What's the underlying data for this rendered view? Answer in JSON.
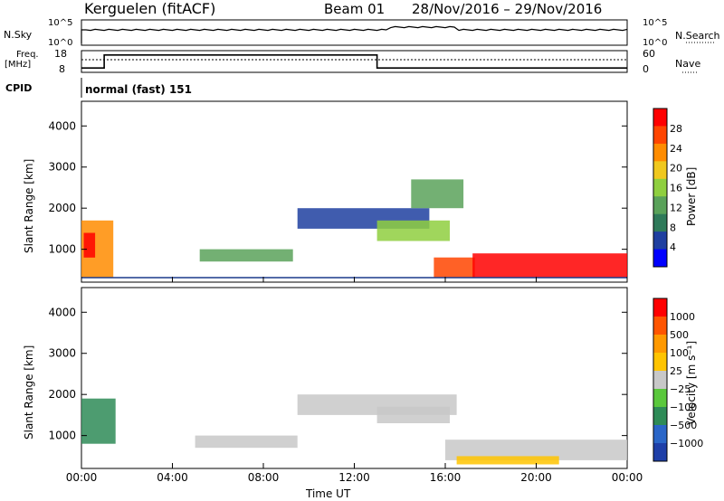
{
  "header": {
    "station": "Kerguelen (fitACF)",
    "beam": "Beam 01",
    "dates": "28/Nov/2016 – 29/Nov/2016"
  },
  "status_panels": {
    "nsky_label": "N.Sky",
    "nsky_ticks": [
      "10^5",
      "10^0"
    ],
    "nsearch_ticks": [
      "10^5",
      "10^0"
    ],
    "nsearch_label": "N.Search",
    "freq_label_1": "Freq.",
    "freq_label_2": "[MHz]",
    "freq_ticks": [
      "18",
      "8"
    ],
    "nave_ticks": [
      "60",
      "0"
    ],
    "nave_label": "Nave",
    "cpid_label": "CPID",
    "cpid_value": "normal (fast) 151"
  },
  "colors": {
    "power_scale": [
      "#0000ff",
      "#1f3fa0",
      "#2f7a5a",
      "#5aa25a",
      "#8fcf3f",
      "#f0c81e",
      "#ff8c00",
      "#ff4500",
      "#ff0000"
    ],
    "velocity_scale": [
      "#1e3fa8",
      "#2a66c8",
      "#2e8b57",
      "#5ac83c",
      "#c8c8c8",
      "#ffc400",
      "#ff9900",
      "#ff5500",
      "#ff0000"
    ]
  },
  "chart_data": [
    {
      "type": "line",
      "name": "status",
      "x_range_hours": [
        0,
        24
      ],
      "frequency_mhz": [
        {
          "from": 0,
          "to": 1,
          "value": 10
        },
        {
          "from": 1,
          "to": 13,
          "value": 16
        },
        {
          "from": 13,
          "to": 24,
          "value": 10
        }
      ],
      "nave_dotted": 44
    },
    {
      "type": "heatmap",
      "name": "power",
      "ylabel": "Slant Range [km]",
      "xlabel": "",
      "x_ticks": [
        "00:00",
        "04:00",
        "08:00",
        "12:00",
        "16:00",
        "20:00",
        "00:00"
      ],
      "y_ticks": [
        "1000",
        "2000",
        "3000",
        "4000"
      ],
      "ylim": [
        200,
        4600
      ],
      "colorbar_label": "Power [dB]",
      "colorbar_ticks": [
        "28",
        "24",
        "20",
        "16",
        "12",
        "8",
        "4"
      ],
      "regions": [
        {
          "t0": 0.0,
          "t1": 1.4,
          "r0": 300,
          "r1": 1700,
          "level": 6
        },
        {
          "t0": 0.1,
          "t1": 0.6,
          "r0": 800,
          "r1": 1400,
          "level": 8
        },
        {
          "t0": 5.2,
          "t1": 9.3,
          "r0": 700,
          "r1": 1000,
          "level": 3
        },
        {
          "t0": 9.5,
          "t1": 15.3,
          "r0": 1500,
          "r1": 2000,
          "level": 1
        },
        {
          "t0": 13.0,
          "t1": 16.2,
          "r0": 1200,
          "r1": 1700,
          "level": 4
        },
        {
          "t0": 14.5,
          "t1": 16.8,
          "r0": 2000,
          "r1": 2700,
          "level": 3
        },
        {
          "t0": 15.5,
          "t1": 17.3,
          "r0": 300,
          "r1": 800,
          "level": 7
        },
        {
          "t0": 17.2,
          "t1": 24.0,
          "r0": 300,
          "r1": 900,
          "level": 8
        }
      ]
    },
    {
      "type": "heatmap",
      "name": "velocity",
      "ylabel": "Slant Range [km]",
      "xlabel": "Time UT",
      "x_ticks": [
        "00:00",
        "04:00",
        "08:00",
        "12:00",
        "16:00",
        "20:00",
        "00:00"
      ],
      "y_ticks": [
        "1000",
        "2000",
        "3000",
        "4000"
      ],
      "ylim": [
        200,
        4600
      ],
      "colorbar_label": "Velocity [m s⁻¹]",
      "colorbar_ticks": [
        "1000",
        "500",
        "100",
        "25",
        "−25",
        "−100",
        "−500",
        "−1000"
      ],
      "regions": [
        {
          "t0": 0.0,
          "t1": 1.5,
          "r0": 800,
          "r1": 1900,
          "level": 2
        },
        {
          "t0": 5.0,
          "t1": 9.5,
          "r0": 700,
          "r1": 1000,
          "level": 4
        },
        {
          "t0": 9.5,
          "t1": 16.5,
          "r0": 1500,
          "r1": 2000,
          "level": 4
        },
        {
          "t0": 13.0,
          "t1": 16.2,
          "r0": 1300,
          "r1": 1700,
          "level": 4
        },
        {
          "t0": 16.0,
          "t1": 24.0,
          "r0": 400,
          "r1": 900,
          "level": 4
        },
        {
          "t0": 16.5,
          "t1": 21.0,
          "r0": 300,
          "r1": 500,
          "level": 5
        }
      ]
    }
  ]
}
